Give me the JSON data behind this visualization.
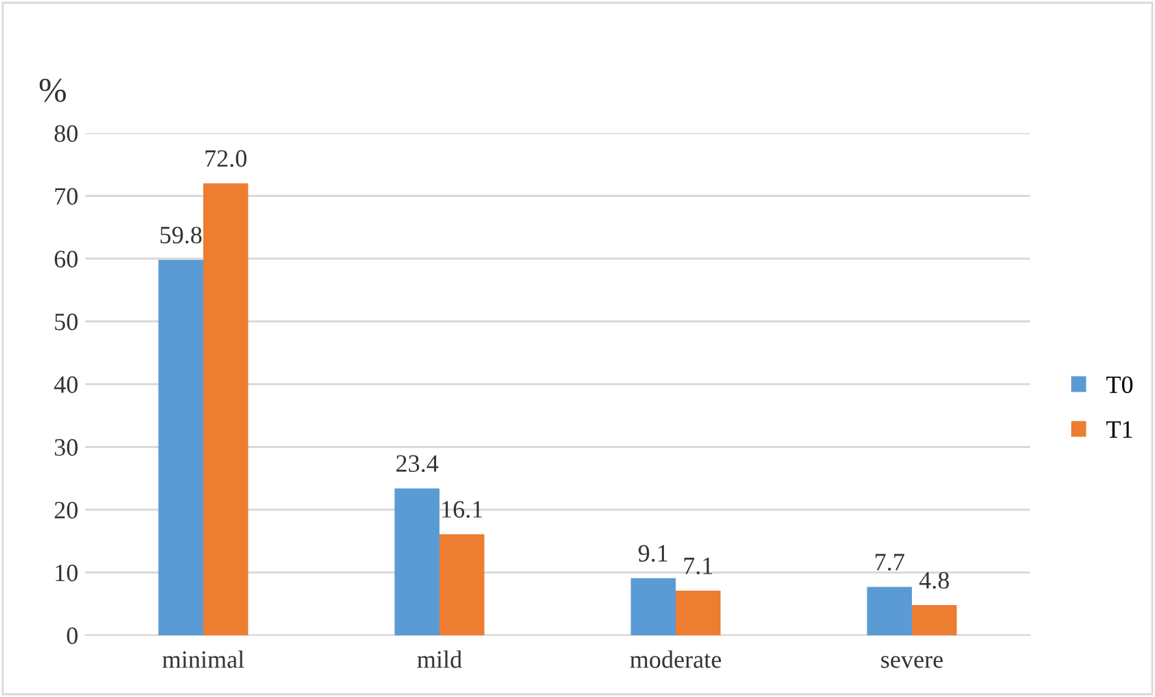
{
  "chart_data": {
    "type": "bar",
    "ylabel": "%",
    "categories": [
      "minimal",
      "mild",
      "moderate",
      "severe"
    ],
    "series": [
      {
        "name": "T0",
        "color": "#5b9bd5",
        "values": [
          59.8,
          23.4,
          9.1,
          7.7
        ],
        "value_labels": [
          "59.8",
          "23.4",
          "9.1",
          "7.7"
        ]
      },
      {
        "name": "T1",
        "color": "#ed7d31",
        "values": [
          72.0,
          16.1,
          7.1,
          4.8
        ],
        "value_labels": [
          "72.0",
          "16.1",
          "7.1",
          "4.8"
        ]
      }
    ],
    "ylim": [
      0,
      80
    ],
    "yticks": [
      0,
      10,
      20,
      30,
      40,
      50,
      60,
      70,
      80
    ],
    "grid": "y",
    "legend": "right"
  }
}
